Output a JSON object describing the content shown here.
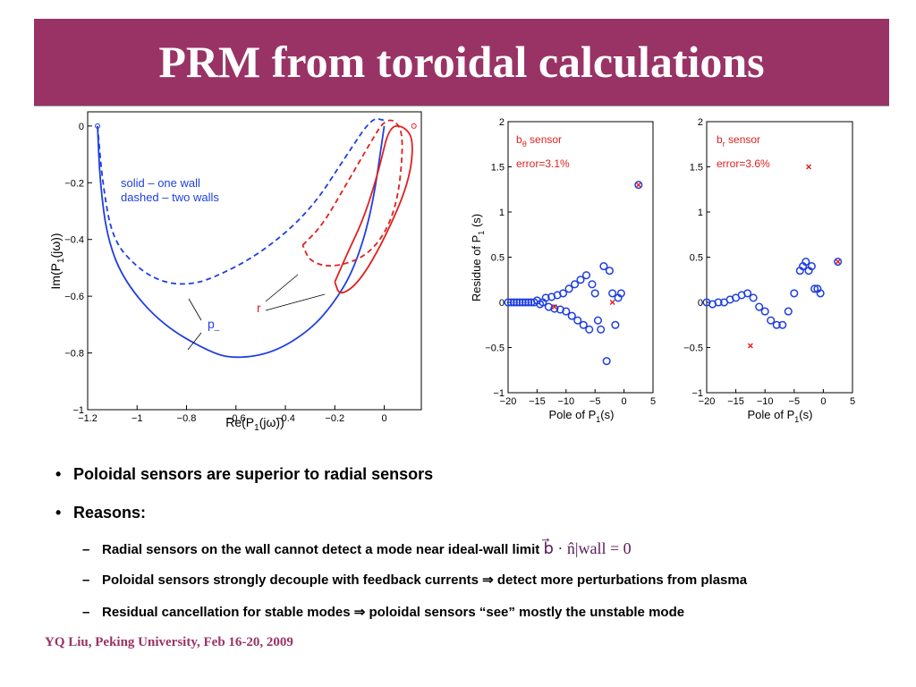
{
  "title": "PRM from toroidal calculations",
  "figure_left": {
    "legend_solid": "solid – one wall",
    "legend_dashed": "dashed – two walls",
    "label_p": "p",
    "label_p_sub": "–",
    "label_r": "r",
    "ylabel_main": "Im(P",
    "ylabel_sub": "1",
    "ylabel_end": "(jω))",
    "xlabel_main": "Re(P",
    "xlabel_sub": "1",
    "xlabel_end": "(jω))",
    "xticks": [
      "−1.2",
      "−1",
      "−0.8",
      "−0.6",
      "−0.4",
      "−0.2",
      "0"
    ],
    "yticks": [
      "0",
      "−0.2",
      "−0.4",
      "−0.6",
      "−0.8",
      "−1"
    ]
  },
  "figure_mid": {
    "sensor_main": "b",
    "sensor_sub": "θ",
    "sensor_end": " sensor",
    "error": "error=3.1%",
    "ylabel_main": "Residue of P",
    "ylabel_sub": "1",
    "ylabel_end": " (s)",
    "xlabel_main": "Pole of P",
    "xlabel_sub": "1",
    "xlabel_end": "(s)",
    "xticks": [
      "−20",
      "−15",
      "−10",
      "−5",
      "0",
      "5"
    ],
    "yticks": [
      "2",
      "1.5",
      "1",
      "0.5",
      "0",
      "−0.5",
      "−1"
    ]
  },
  "figure_right": {
    "sensor_main": "b",
    "sensor_sub": "r",
    "sensor_end": " sensor",
    "error": "error=3.6%",
    "xlabel_main": "Pole of P",
    "xlabel_sub": "1",
    "xlabel_end": "(s)",
    "xticks": [
      "−20",
      "−15",
      "−10",
      "−5",
      "0",
      "5"
    ],
    "yticks": [
      "2",
      "1.5",
      "1",
      "0.5",
      "0",
      "−0.5",
      "−1"
    ]
  },
  "chart_data": [
    {
      "type": "line",
      "xlabel": "Re(P1(jω))",
      "ylabel": "Im(P1(jω))",
      "xlim": [
        -1.2,
        0.15
      ],
      "ylim": [
        -1,
        0.05
      ],
      "series": [
        {
          "name": "solid – one wall",
          "color": "#1f3fe0",
          "style": "solid",
          "x": [
            -1.16,
            -1.15,
            -1.12,
            -1.05,
            -0.9,
            -0.7,
            -0.6,
            -0.45,
            -0.3,
            -0.2,
            -0.12,
            -0.05,
            0.0
          ],
          "y": [
            0.0,
            -0.2,
            -0.4,
            -0.55,
            -0.7,
            -0.8,
            -0.82,
            -0.8,
            -0.72,
            -0.62,
            -0.5,
            -0.3,
            0.0
          ]
        },
        {
          "name": "dashed – two walls",
          "color": "#1f3fe0",
          "style": "dashed",
          "x": [
            -1.16,
            -1.14,
            -1.1,
            -1.0,
            -0.9,
            -0.8,
            -0.7,
            -0.5,
            -0.3,
            -0.15,
            -0.05,
            0.0
          ],
          "y": [
            0.0,
            -0.2,
            -0.4,
            -0.5,
            -0.55,
            -0.56,
            -0.54,
            -0.45,
            -0.3,
            -0.1,
            0.03,
            0.02
          ]
        },
        {
          "name": "solid – one wall (r)",
          "color": "#e02020",
          "style": "solid",
          "x": [
            -0.2,
            -0.15,
            -0.08,
            -0.02,
            0.02,
            0.08,
            0.12,
            0.1,
            0.0,
            -0.1,
            -0.18,
            -0.2
          ],
          "y": [
            -0.55,
            -0.45,
            -0.32,
            -0.15,
            0.0,
            0.0,
            -0.05,
            -0.2,
            -0.4,
            -0.55,
            -0.6,
            -0.55
          ]
        },
        {
          "name": "dashed – two walls (r)",
          "color": "#e02020",
          "style": "dashed",
          "x": [
            -0.33,
            -0.25,
            -0.15,
            -0.05,
            0.0,
            0.05,
            0.08,
            0.05,
            -0.05,
            -0.2,
            -0.3,
            -0.33
          ],
          "y": [
            -0.42,
            -0.35,
            -0.2,
            -0.05,
            0.02,
            0.02,
            -0.05,
            -0.3,
            -0.45,
            -0.5,
            -0.48,
            -0.42
          ]
        }
      ]
    },
    {
      "type": "scatter",
      "xlabel": "Pole of P1(s)",
      "ylabel": "Residue of P1 (s)",
      "xlim": [
        -20,
        5
      ],
      "ylim": [
        -1,
        2
      ],
      "series": [
        {
          "name": "circles",
          "color": "#1f3fe0",
          "marker": "o",
          "x": [
            -20,
            -19.5,
            -19,
            -18.5,
            -18,
            -17.5,
            -17,
            -16.5,
            -16,
            -15.5,
            -15,
            -14.5,
            -14,
            -13.5,
            -13,
            -12.5,
            -12,
            -11.5,
            -11,
            -10.5,
            -10,
            -9.5,
            -9,
            -8.5,
            -8,
            -7.5,
            -7,
            -6.5,
            -6,
            -5.5,
            -5,
            -4.5,
            -4,
            -3.5,
            -3,
            -2.5,
            -2,
            -1.5,
            -1,
            -0.5,
            2.5
          ],
          "y": [
            0.0,
            0.0,
            0.0,
            0.0,
            0.0,
            0.0,
            0.0,
            0.0,
            0.0,
            0.0,
            0.02,
            -0.02,
            0.0,
            0.05,
            -0.05,
            0.06,
            -0.07,
            0.08,
            -0.08,
            0.1,
            -0.1,
            0.15,
            -0.15,
            0.2,
            -0.2,
            0.25,
            -0.25,
            0.3,
            -0.3,
            0.2,
            0.1,
            -0.2,
            -0.3,
            0.4,
            -0.65,
            0.35,
            0.1,
            -0.25,
            0.05,
            0.1,
            1.3
          ]
        },
        {
          "name": "crosses",
          "color": "#e02020",
          "marker": "x",
          "x": [
            -12,
            -2,
            2.5
          ],
          "y": [
            -0.05,
            0.0,
            1.3
          ]
        }
      ]
    },
    {
      "type": "scatter",
      "xlabel": "Pole of P1(s)",
      "xlim": [
        -20,
        5
      ],
      "ylim": [
        -1,
        2
      ],
      "series": [
        {
          "name": "circles",
          "color": "#1f3fe0",
          "marker": "o",
          "x": [
            -20,
            -19,
            -18,
            -17,
            -16,
            -15,
            -14,
            -13,
            -12,
            -11,
            -10,
            -9,
            -8,
            -7,
            -6,
            -5,
            -4,
            -3.5,
            -3,
            -2.5,
            -2,
            -1.5,
            -1,
            -0.5,
            2.5
          ],
          "y": [
            0.0,
            -0.02,
            0.0,
            0.0,
            0.03,
            0.05,
            0.08,
            0.1,
            0.05,
            -0.05,
            -0.1,
            -0.2,
            -0.25,
            -0.25,
            -0.1,
            0.1,
            0.35,
            0.4,
            0.45,
            0.35,
            0.4,
            0.15,
            0.15,
            0.1,
            0.45
          ]
        },
        {
          "name": "crosses",
          "color": "#e02020",
          "marker": "x",
          "x": [
            -12.5,
            -2.5,
            2.5
          ],
          "y": [
            -0.48,
            1.5,
            0.45
          ]
        }
      ]
    }
  ],
  "bullets": [
    {
      "text": "Poloidal sensors are superior to radial sensors"
    },
    {
      "text": "Reasons:"
    }
  ],
  "sub_bullets": [
    {
      "text": "Radial sensors on the wall cannot detect a mode near ideal-wall limit",
      "math": "b⃗ · n̂|wall = 0"
    },
    {
      "text": "Poloidal sensors strongly decouple with feedback currents ⇒ detect more perturbations from plasma"
    },
    {
      "text": "Residual cancellation for stable modes ⇒ poloidal sensors “see” mostly the unstable mode"
    }
  ],
  "footer": "YQ Liu, Peking University, Feb 16-20, 2009",
  "colors": {
    "title_bg": "#993366",
    "blue": "#1f3fe0",
    "red": "#e02020",
    "footer": "#993366"
  }
}
